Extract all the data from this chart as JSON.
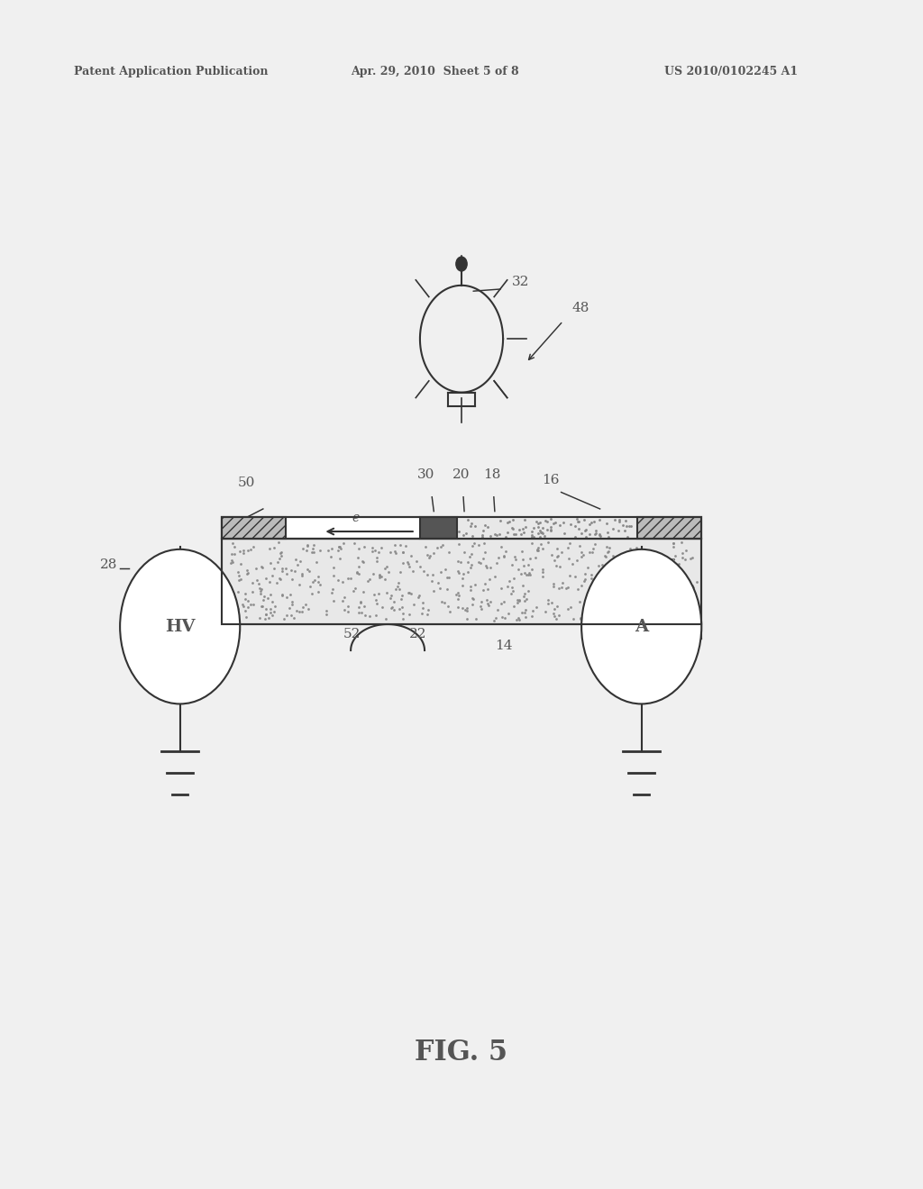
{
  "bg_color": "#f0f0f0",
  "header_text1": "Patent Application Publication",
  "header_text2": "Apr. 29, 2010  Sheet 5 of 8",
  "header_text3": "US 2010/0102245 A1",
  "fig_label": "FIG. 5",
  "label_color": "#555555",
  "line_color": "#333333",
  "dark_block_color": "#555555"
}
